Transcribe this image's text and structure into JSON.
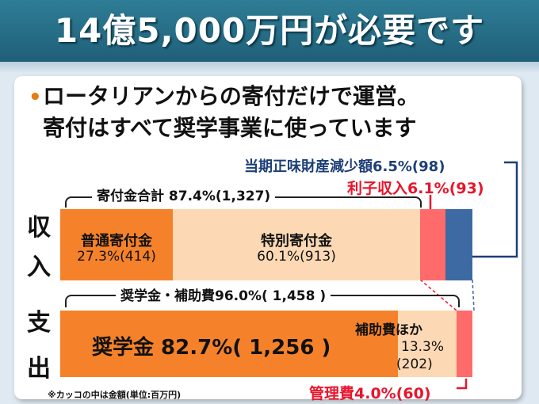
{
  "title": "14億5,000万円が必要です",
  "bullet": "•",
  "headline": {
    "line1": "ロータリアンからの寄付だけで運営。",
    "line2": "寄付はすべて奨学事業に使っています"
  },
  "side_labels": {
    "income": [
      "収",
      "入"
    ],
    "expense": [
      "支",
      "出"
    ]
  },
  "annotations": {
    "net_asset_decrease": "当期正味財産減少額6.5%(98)",
    "interest_income": "利子収入6.1%(93)",
    "donation_total": "寄付金合計  87.4%(1,327)",
    "scholarship_subsidy_total": "奨学金・補助費96.0%(  1,458 )",
    "admin_cost": "管理費4.0%(60)",
    "unit_note": "※カッコの中は金額(単位:百万円)"
  },
  "income_bar": {
    "segments": [
      {
        "label": "普通寄付金",
        "value": "27.3%(414)",
        "percent": 27.3,
        "color": "#f5822a"
      },
      {
        "label": "特別寄付金",
        "value": "60.1%(913)",
        "percent": 60.1,
        "color": "#fcd9b4"
      },
      {
        "label": "",
        "value": "",
        "percent": 6.1,
        "color": "#ff6b6b"
      },
      {
        "label": "",
        "value": "",
        "percent": 6.5,
        "color": "#3d6aa3"
      }
    ]
  },
  "expense_bar": {
    "segments": [
      {
        "label": "奨学金  82.7%(  1,256  )",
        "percent": 82.7,
        "color": "#f5822a"
      },
      {
        "label": "補助費ほか",
        "value": "13.3%",
        "amount": "(202)",
        "percent": 13.3,
        "color": "#fcd9b4"
      },
      {
        "label": "",
        "percent": 4.0,
        "color": "#ff6b6b"
      }
    ]
  }
}
